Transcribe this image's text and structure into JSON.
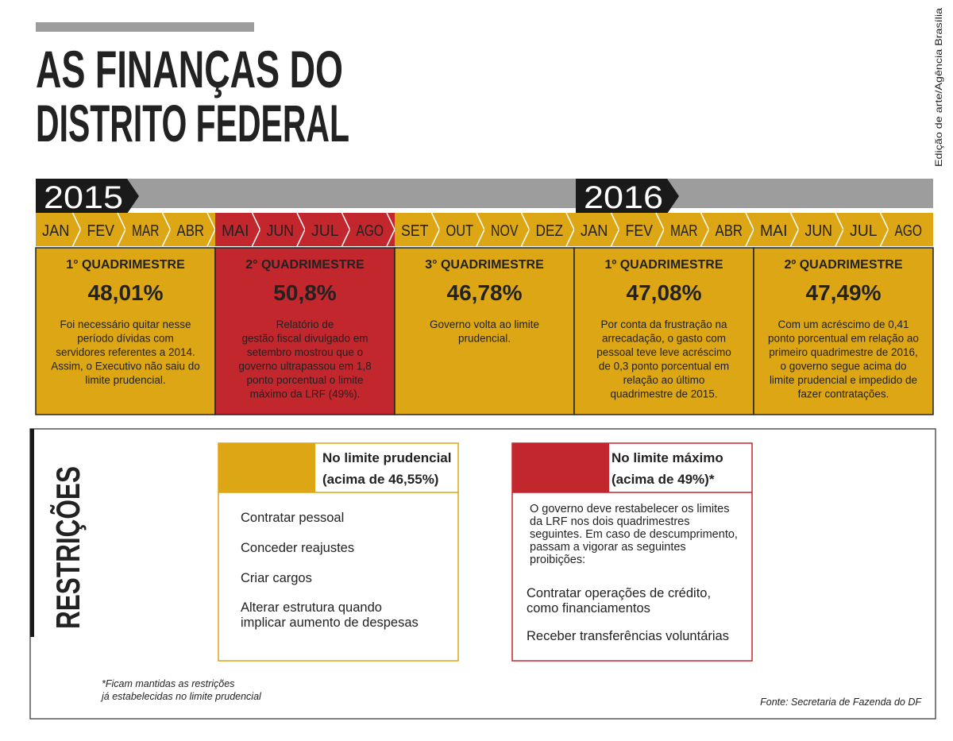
{
  "header": {
    "title_lines": [
      "AS FINANÇAS DO",
      "DISTRITO FEDERAL"
    ],
    "credit": "Edição de arte/Agência Brasília"
  },
  "timeline": {
    "years": [
      "2015",
      "2016"
    ],
    "months": [
      {
        "label": "JAN",
        "color": "#dca614"
      },
      {
        "label": "FEV",
        "color": "#dca614"
      },
      {
        "label": "MAR",
        "color": "#dca614"
      },
      {
        "label": "ABR",
        "color": "#dca614"
      },
      {
        "label": "MAI",
        "color": "#c1272d"
      },
      {
        "label": "JUN",
        "color": "#c1272d"
      },
      {
        "label": "JUL",
        "color": "#c1272d"
      },
      {
        "label": "AGO",
        "color": "#c1272d"
      },
      {
        "label": "SET",
        "color": "#dca614"
      },
      {
        "label": "OUT",
        "color": "#dca614"
      },
      {
        "label": "NOV",
        "color": "#dca614"
      },
      {
        "label": "DEZ",
        "color": "#dca614"
      },
      {
        "label": "JAN",
        "color": "#dca614"
      },
      {
        "label": "FEV",
        "color": "#dca614"
      },
      {
        "label": "MAR",
        "color": "#dca614"
      },
      {
        "label": "ABR",
        "color": "#dca614"
      },
      {
        "label": "MAI",
        "color": "#dca614"
      },
      {
        "label": "JUN",
        "color": "#dca614"
      },
      {
        "label": "JUL",
        "color": "#dca614"
      },
      {
        "label": "AGO",
        "color": "#dca614"
      }
    ],
    "periods": [
      {
        "title": "1° QUADRIMESTRE",
        "value": "48,01%",
        "color": "#dca614",
        "text_lines": [
          "Foi necessário quitar nesse",
          "período dívidas com",
          "servidores referentes a 2014.",
          "Assim, o Executivo não saiu do",
          "limite prudencial."
        ]
      },
      {
        "title": "2° QUADRIMESTRE",
        "value": "50,8%",
        "color": "#c1272d",
        "text_lines": [
          "Relatório de",
          "gestão fiscal divulgado em",
          "setembro mostrou que o",
          "governo ultrapassou em 1,8",
          "ponto porcentual o limite",
          "máximo da LRF (49%)."
        ]
      },
      {
        "title": "3° QUADRIMESTRE",
        "value": "46,78%",
        "color": "#dca614",
        "text_lines": [
          "Governo volta ao limite",
          "prudencial."
        ]
      },
      {
        "title": "1º QUADRIMESTRE",
        "value": "47,08%",
        "color": "#dca614",
        "text_lines": [
          "Por conta da frustração na",
          "arrecadação, o gasto com",
          "pessoal teve leve acréscimo",
          "de 0,3 ponto porcentual em",
          "relação ao último",
          "quadrimestre de 2015."
        ]
      },
      {
        "title": "2º QUADRIMESTRE",
        "value": "47,49%",
        "color": "#dca614",
        "text_lines": [
          "Com um acréscimo de 0,41",
          "ponto porcentual em relação ao",
          "primeiro quadrimestre de 2016,",
          "o governo segue acima do",
          "limite prudencial e impedido de",
          "fazer contratações."
        ]
      }
    ]
  },
  "restrictions": {
    "title": "RESTRIÇÕES",
    "boxes": [
      {
        "color": "#dca614",
        "title_lines": [
          "No limite prudencial",
          "(acima de 46,55%)"
        ],
        "intro_lines": [],
        "items": [
          [
            "Contratar pessoal"
          ],
          [
            "Conceder reajustes"
          ],
          [
            "Criar cargos"
          ],
          [
            "Alterar estrutura quando",
            "implicar aumento de despesas"
          ]
        ]
      },
      {
        "color": "#c1272d",
        "title_lines": [
          "No limite máximo",
          "(acima de 49%)*"
        ],
        "intro_lines": [
          "O governo deve restabelecer os limites",
          "da LRF nos dois quadrimestres",
          "seguintes. Em caso de descumprimento,",
          "passam a vigorar as seguintes",
          "proibições:"
        ],
        "items": [
          [
            "Contratar operações de crédito,",
            "como financiamentos"
          ],
          [
            "Receber transferências voluntárias"
          ]
        ]
      }
    ],
    "footnote_lines": [
      "*Ficam mantidas as restrições",
      "já estabelecidas no limite prudencial"
    ],
    "source": "Fonte: Secretaria de Fazenda do DF"
  }
}
